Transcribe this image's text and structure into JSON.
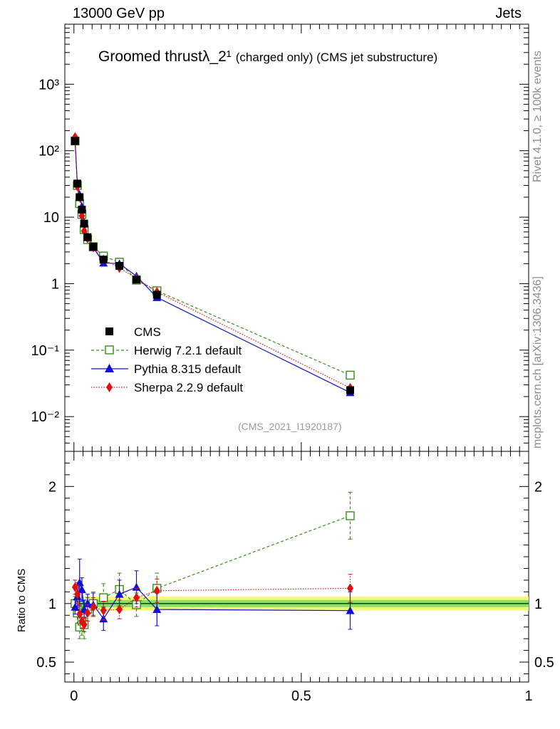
{
  "header": {
    "left": "13000 GeV pp",
    "right": "Jets"
  },
  "title": {
    "main": "Groomed thrustλ_2¹",
    "sub": "(charged only) (CMS jet substructure)"
  },
  "side_labels": {
    "rivet": "Rivet 4.1.0, ≥ 100k events",
    "mcplots": "mcplots.cern.ch [arXiv:1306.3436]"
  },
  "analysis_tag": "(CMS_2021_I1920187)",
  "colors": {
    "cms": "#000000",
    "herwig": "#3a8c1a",
    "pythia": "#1010d0",
    "sherpa": "#e01010",
    "band_inner": "#58d858",
    "band_outer": "#f6f67a"
  },
  "chart_data": [
    {
      "type": "scatter",
      "panel": "main",
      "yscale": "log",
      "xlim": [
        -0.02,
        1.0
      ],
      "ylim": [
        0.003,
        8000
      ],
      "y_ticks": [
        {
          "value": 0.01,
          "label": "10⁻²"
        },
        {
          "value": 0.1,
          "label": "10⁻¹"
        },
        {
          "value": 1,
          "label": "1"
        },
        {
          "value": 10,
          "label": "10"
        },
        {
          "value": 100,
          "label": "10²"
        },
        {
          "value": 1000,
          "label": "10³"
        }
      ],
      "x": [
        0.0025,
        0.0075,
        0.0125,
        0.0175,
        0.0225,
        0.03,
        0.0425,
        0.065,
        0.1,
        0.1375,
        0.1825,
        0.6075
      ],
      "series": [
        {
          "name": "CMS",
          "style": "filled-square",
          "values": [
            140,
            32,
            20,
            13,
            8,
            5,
            3.6,
            2.3,
            1.85,
            1.15,
            0.68,
            0.025
          ]
        },
        {
          "name": "Herwig 7.2.1 default",
          "style": "open-square-dashed",
          "values": [
            140,
            30,
            16,
            11,
            6.5,
            4.6,
            3.6,
            2.6,
            2.1,
            1.13,
            0.78,
            0.042
          ]
        },
        {
          "name": "Pythia 8.315 default",
          "style": "triangle-solid",
          "values": [
            140,
            32,
            22,
            14.5,
            8.2,
            5.0,
            3.5,
            2.05,
            2.0,
            1.3,
            0.62,
            0.023
          ]
        },
        {
          "name": "Sherpa 2.2.9 default",
          "style": "diamond-dotted",
          "values": [
            160,
            29,
            20,
            10.5,
            6.2,
            4.8,
            3.5,
            2.3,
            1.72,
            1.2,
            0.75,
            0.027
          ]
        }
      ],
      "legend": [
        "CMS",
        "Herwig 7.2.1 default",
        "Pythia 8.315 default",
        "Sherpa 2.2.9 default"
      ]
    },
    {
      "type": "scatter",
      "panel": "ratio",
      "ylabel": "Ratio to CMS",
      "xlim": [
        -0.02,
        1.0
      ],
      "ylim": [
        0.33,
        2.3
      ],
      "y_ticks": [
        {
          "value": 0.5,
          "label": "0.5"
        },
        {
          "value": 1,
          "label": "1"
        },
        {
          "value": 2,
          "label": "2"
        }
      ],
      "x_ticks": [
        {
          "value": 0,
          "label": "0"
        },
        {
          "value": 0.5,
          "label": "0.5"
        },
        {
          "value": 1,
          "label": "1"
        }
      ],
      "band": {
        "inner": [
          0.97,
          1.03
        ],
        "outer": [
          0.94,
          1.06
        ]
      },
      "x": [
        0.0025,
        0.0075,
        0.0125,
        0.0175,
        0.0225,
        0.03,
        0.0425,
        0.065,
        0.1,
        0.1375,
        0.1825,
        0.6075
      ],
      "series": [
        {
          "name": "Herwig 7.2.1 default",
          "values": [
            1.0,
            0.92,
            0.8,
            0.85,
            0.82,
            0.95,
            1.0,
            1.05,
            1.12,
            0.99,
            1.13,
            1.75
          ],
          "errors": [
            0.06,
            0.1,
            0.1,
            0.12,
            0.12,
            0.1,
            0.1,
            0.12,
            0.14,
            0.1,
            0.13,
            0.2
          ]
        },
        {
          "name": "Pythia 8.315 default",
          "values": [
            0.97,
            1.06,
            1.18,
            1.12,
            0.95,
            1.0,
            0.99,
            0.87,
            1.08,
            1.14,
            0.95,
            0.94
          ],
          "errors": [
            0.06,
            0.12,
            0.2,
            0.1,
            0.08,
            0.08,
            0.1,
            0.1,
            0.12,
            0.14,
            0.14,
            0.16
          ]
        },
        {
          "name": "Sherpa 2.2.9 default",
          "values": [
            1.14,
            1.08,
            0.91,
            0.85,
            0.82,
            0.92,
            0.97,
            0.94,
            0.95,
            1.05,
            1.11,
            1.13
          ],
          "errors": [
            0.06,
            0.08,
            0.08,
            0.06,
            0.06,
            0.07,
            0.08,
            0.08,
            0.08,
            0.08,
            0.1,
            0.12
          ]
        }
      ]
    }
  ]
}
